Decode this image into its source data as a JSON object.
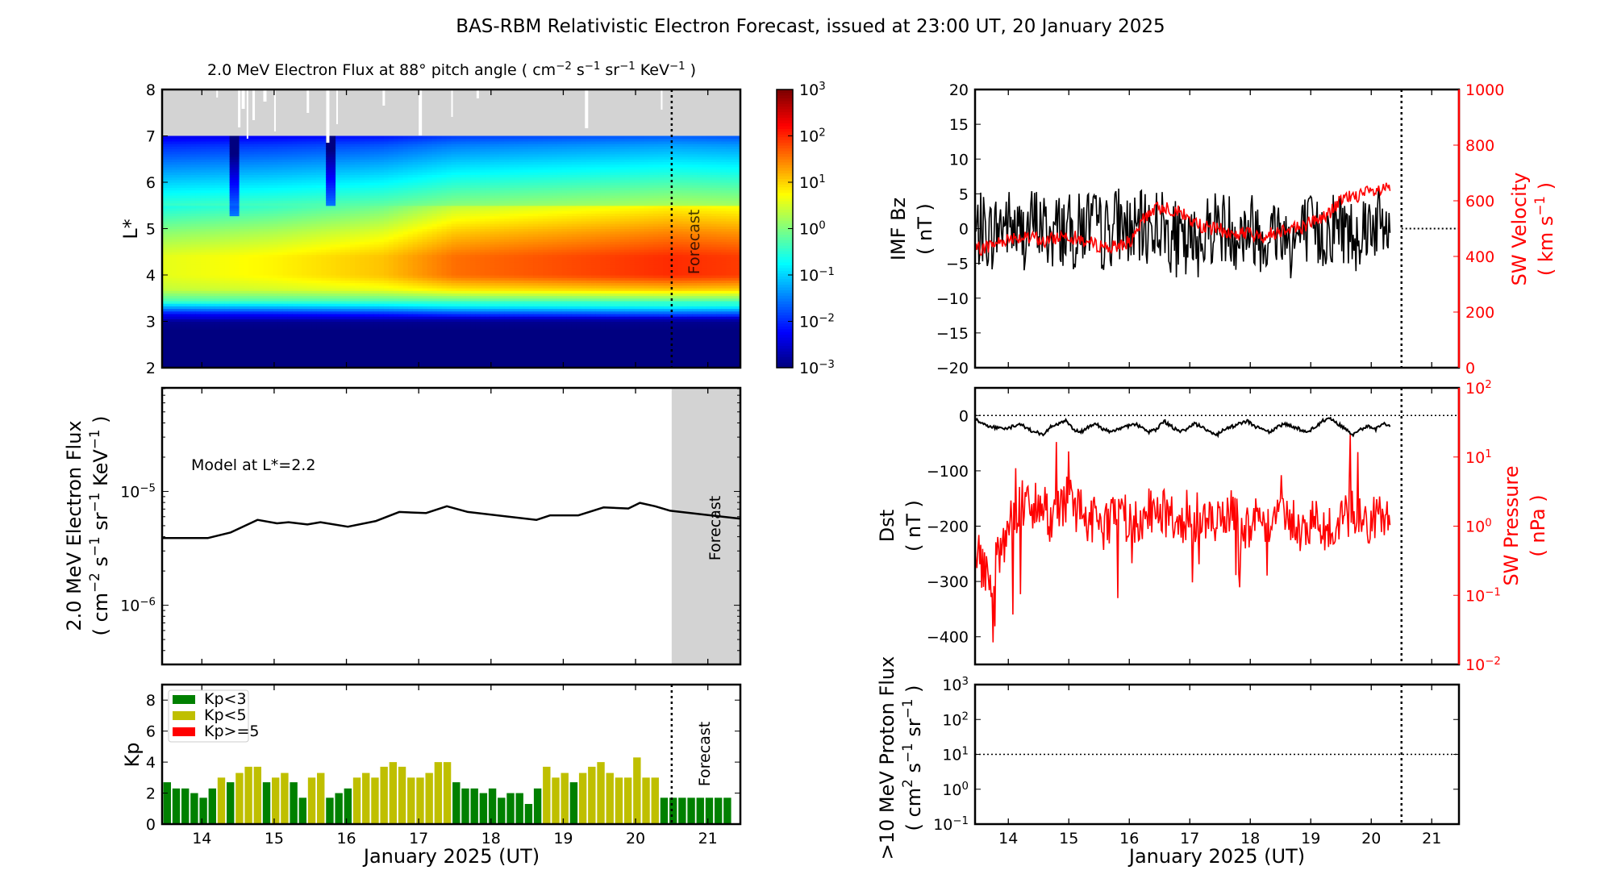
{
  "title": "BAS-RBM Relativistic Electron Forecast, issued at 23:00 UT, 20 January 2025",
  "colors": {
    "kp_low": "#008000",
    "kp_mid": "#bfbf00",
    "kp_high": "#ff0000",
    "sw": "#ff0000",
    "forecast_shade": "#d3d3d3"
  },
  "chart_data": [
    {
      "id": "flux-heatmap",
      "type": "heatmap",
      "title": "2.0 MeV Electron Flux at 88° pitch angle",
      "title_units": {
        "base": "cm",
        "e1": "−2",
        "u2": "s",
        "e2": "−1",
        "u3": "sr",
        "e3": "−1",
        "u4": "KeV",
        "e4": "−1"
      },
      "ylabel": "L*",
      "ylim": [
        2,
        8
      ],
      "xlim": [
        13.45,
        21.45
      ],
      "yticks": [
        2,
        3,
        4,
        5,
        6,
        7,
        8
      ],
      "no_data_above_L": 7,
      "forecast_start": 20.5,
      "forecast_label": "Forecast",
      "colorbar": {
        "scale": "log",
        "min_exp": -3,
        "max_exp": 3,
        "tick_exps": [
          -3,
          -2,
          -1,
          0,
          1,
          2,
          3
        ]
      },
      "L_profile": {
        "L": [
          2,
          2.8,
          3.0,
          3.15,
          3.3,
          3.45,
          3.7,
          4.0,
          4.4,
          4.9,
          5.4,
          5.9,
          6.4,
          6.8,
          7.0
        ],
        "log_flux": [
          -3,
          -3,
          -2.9,
          -2.2,
          -1.2,
          -0.3,
          0.6,
          1.0,
          1.0,
          0.5,
          -0.1,
          -0.7,
          -1.3,
          -1.8,
          -2.2
        ]
      },
      "time_growth": {
        "days": [
          13.45,
          15.0,
          16.5,
          17.5,
          19.0,
          20.5,
          21.45
        ],
        "log_offset": [
          -0.4,
          -0.2,
          0.1,
          0.6,
          0.8,
          1.0,
          0.9
        ]
      },
      "dropouts": [
        {
          "day": 14.45,
          "L_min": 5.3
        },
        {
          "day": 15.8,
          "L_min": 5.5
        }
      ]
    },
    {
      "id": "model-flux-line",
      "type": "line",
      "annotation": "Model at L*=2.2",
      "ylabel_line1": "2.0 MeV Electron Flux",
      "ylabel_units": {
        "base": "cm",
        "e1": "−2",
        "u2": "s",
        "e2": "−1",
        "u3": "sr",
        "e3": "−1",
        "u4": "KeV",
        "e4": "−1"
      },
      "yscale": "log",
      "ylim_log10": [
        -6.52,
        -4.09
      ],
      "ytick_exps": [
        -6,
        -5
      ],
      "forecast_start": 20.5,
      "forecast_label": "Forecast",
      "x": [
        13.45,
        14.08,
        14.4,
        14.77,
        15.04,
        15.2,
        15.46,
        15.64,
        16.02,
        16.41,
        16.73,
        17.1,
        17.39,
        17.68,
        18.63,
        18.82,
        19.21,
        19.56,
        19.9,
        20.06,
        20.27,
        20.48,
        21.45
      ],
      "log10_flux": [
        -5.41,
        -5.41,
        -5.36,
        -5.25,
        -5.28,
        -5.27,
        -5.29,
        -5.27,
        -5.31,
        -5.26,
        -5.18,
        -5.19,
        -5.13,
        -5.18,
        -5.25,
        -5.21,
        -5.21,
        -5.14,
        -5.15,
        -5.1,
        -5.13,
        -5.17,
        -5.24
      ]
    },
    {
      "id": "kp-bars",
      "type": "bar",
      "ylabel": "Kp",
      "ylim": [
        0,
        9
      ],
      "yticks": [
        0,
        2,
        4,
        6,
        8
      ],
      "xlabel": "January 2025 (UT)",
      "xticks": [
        14,
        15,
        16,
        17,
        18,
        19,
        20,
        21
      ],
      "start_day": 13.5,
      "interval_days": 0.125,
      "values": [
        2.7,
        2.3,
        2.3,
        2.0,
        1.7,
        2.3,
        3.0,
        2.7,
        3.3,
        3.7,
        3.7,
        2.7,
        3.0,
        3.3,
        2.7,
        1.7,
        3.0,
        3.3,
        1.7,
        2.0,
        2.3,
        3.0,
        3.3,
        3.0,
        3.7,
        4.0,
        3.7,
        3.0,
        3.0,
        3.3,
        4.0,
        4.0,
        2.7,
        2.3,
        2.3,
        2.0,
        2.3,
        1.7,
        2.0,
        2.0,
        1.3,
        2.3,
        3.7,
        3.0,
        3.3,
        2.7,
        3.3,
        3.7,
        4.0,
        3.3,
        3.0,
        3.0,
        4.3,
        3.0,
        3.0,
        1.7,
        1.7,
        1.7,
        1.7,
        1.7,
        1.7,
        1.7,
        1.7
      ],
      "legend": [
        "Kp<3",
        "Kp<5",
        "Kp>=5"
      ],
      "forecast_start": 20.5,
      "forecast_label": "Forecast"
    },
    {
      "id": "imf-bz-sw-velocity",
      "type": "line",
      "ylabel_left": "IMF Bz",
      "ylabel_left_units": "( nT )",
      "ylim_left": [
        -20,
        20
      ],
      "yticks_left": [
        -20,
        -15,
        -10,
        -5,
        0,
        5,
        10,
        15,
        20
      ],
      "ylabel_right": "SW Velocity",
      "ylabel_right_units": {
        "open": "( km s",
        "exp": "−1",
        "close": " )"
      },
      "ylim_right": [
        0,
        1000
      ],
      "yticks_right": [
        0,
        200,
        400,
        600,
        800,
        1000
      ],
      "sample_interval_days": 0.125,
      "start_day": 13.45,
      "bz_mean": [
        -1,
        0,
        -1,
        0,
        1,
        0,
        -1,
        0,
        1,
        0,
        -1,
        0,
        0,
        -1,
        0,
        1,
        0,
        -1,
        0,
        1,
        0,
        -1,
        0,
        0,
        1,
        0,
        -1,
        -2,
        -3,
        -2,
        -1,
        0,
        1,
        0,
        0,
        -1,
        0,
        0,
        -1,
        -1,
        0,
        -1,
        -2,
        -1,
        0,
        -1,
        -1,
        0,
        1,
        0,
        -1,
        0,
        1,
        1,
        0,
        0
      ],
      "bz_noise_amplitude": 5.5,
      "velocity": [
        420,
        430,
        440,
        450,
        460,
        470,
        470,
        460,
        470,
        450,
        460,
        470,
        480,
        470,
        460,
        450,
        440,
        440,
        430,
        440,
        450,
        460,
        520,
        560,
        570,
        580,
        570,
        560,
        540,
        520,
        510,
        500,
        500,
        490,
        480,
        480,
        490,
        470,
        470,
        480,
        490,
        500,
        510,
        500,
        520,
        530,
        540,
        560,
        590,
        610,
        620,
        620,
        630,
        630,
        640,
        640
      ],
      "velocity_noise_amplitude": 25,
      "zero_line": 0
    },
    {
      "id": "dst-sw-pressure",
      "type": "line",
      "ylabel_left": "Dst",
      "ylabel_left_units": "( nT )",
      "ylim_left": [
        -450,
        50
      ],
      "yticks_left": [
        -400,
        -300,
        -200,
        -100,
        0
      ],
      "ylabel_right": "SW Pressure",
      "ylabel_right_units": "( nPa )",
      "yscale_right": "log",
      "ylim_right_log10": [
        -2,
        2
      ],
      "ytick_exps_right": [
        -2,
        -1,
        0,
        1,
        2
      ],
      "sample_interval_days": 0.125,
      "start_day": 13.45,
      "dst": [
        -5,
        -15,
        -20,
        -22,
        -25,
        -20,
        -15,
        -25,
        -30,
        -35,
        -20,
        -15,
        -10,
        -25,
        -30,
        -20,
        -15,
        -25,
        -30,
        -25,
        -20,
        -15,
        -20,
        -30,
        -25,
        -10,
        -20,
        -30,
        -25,
        -15,
        -20,
        -30,
        -35,
        -25,
        -20,
        -15,
        -10,
        -20,
        -25,
        -30,
        -20,
        -15,
        -20,
        -25,
        -30,
        -20,
        -10,
        -5,
        -15,
        -25,
        -35,
        -25,
        -20,
        -25,
        -15,
        -20
      ],
      "log10_pressure": [
        -0.3,
        -0.6,
        -0.8,
        -0.5,
        -0.2,
        0.1,
        0.3,
        0.4,
        0.2,
        0.3,
        0.1,
        0.2,
        0.4,
        0.3,
        0.2,
        0.1,
        0.1,
        0.0,
        0.1,
        0.2,
        0.1,
        0.0,
        0.1,
        0.2,
        0.3,
        0.2,
        0.1,
        0.1,
        0.0,
        0.1,
        0.2,
        0.1,
        0.0,
        0.1,
        0.2,
        0.1,
        0.0,
        0.1,
        0.1,
        0.0,
        0.1,
        0.2,
        0.1,
        0.0,
        -0.1,
        0.1,
        0.0,
        -0.1,
        0.0,
        0.1,
        0.2,
        0.1,
        0.0,
        0.1,
        0.2,
        0.2
      ],
      "pressure_noise_log10": 0.35,
      "zero_line": 0
    },
    {
      "id": "proton-flux",
      "type": "line",
      "ylabel_line1": ">10 MeV Proton Flux",
      "ylabel_units": {
        "open": "( cm",
        "e1": "2",
        "u2": " s",
        "e2": "−1",
        "u3": " sr",
        "e3": "−1",
        "close": " )"
      },
      "yscale": "log",
      "ylim_log10": [
        -1,
        3
      ],
      "ytick_exps": [
        -1,
        0,
        1,
        2,
        3
      ],
      "threshold": 10,
      "xlabel": "January 2025 (UT)",
      "xticks": [
        14,
        15,
        16,
        17,
        18,
        19,
        20,
        21
      ]
    }
  ]
}
